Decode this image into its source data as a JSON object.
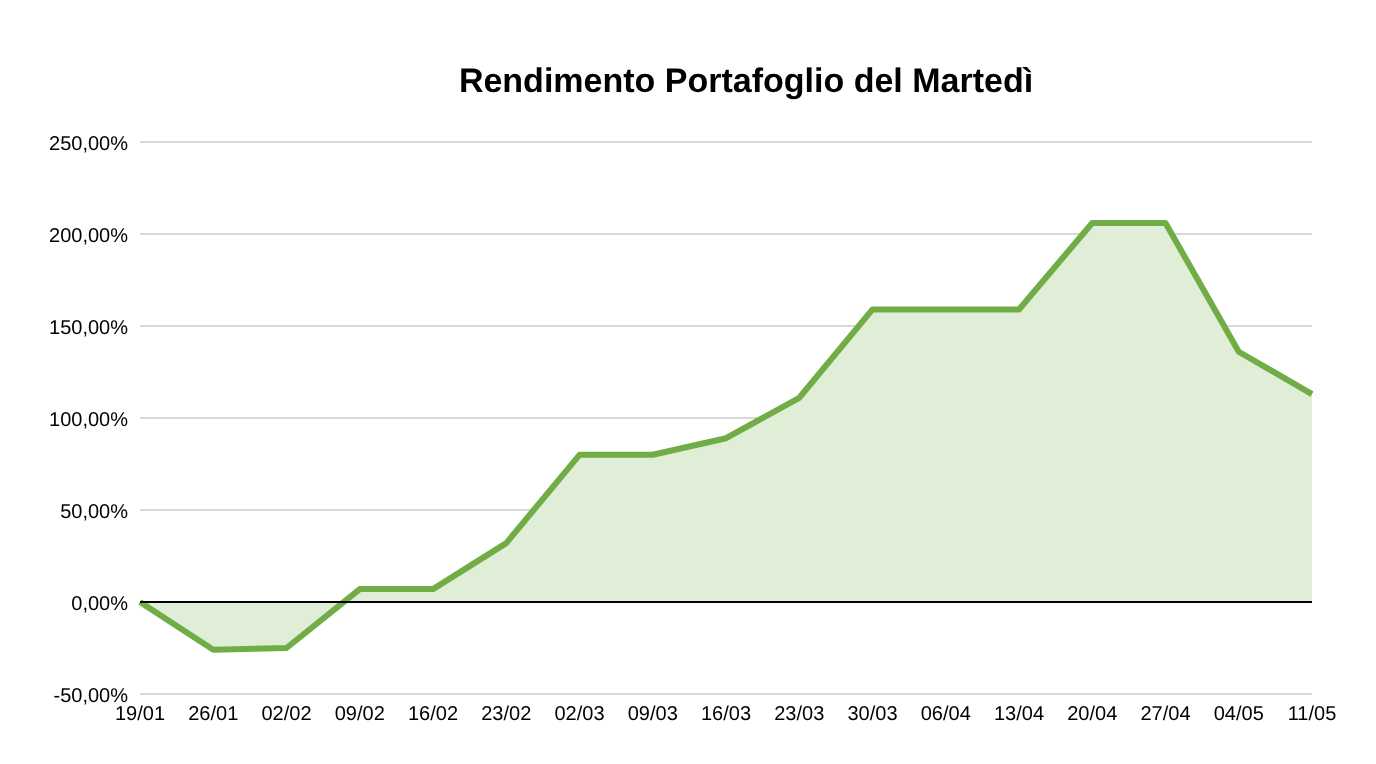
{
  "chart_data": {
    "type": "area",
    "title": "Rendimento Portafoglio del Martedì",
    "categories": [
      "19/01",
      "26/01",
      "02/02",
      "09/02",
      "16/02",
      "23/02",
      "02/03",
      "09/03",
      "16/03",
      "23/03",
      "30/03",
      "06/04",
      "13/04",
      "20/04",
      "27/04",
      "04/05",
      "11/05"
    ],
    "series": [
      {
        "color": "#70ad47",
        "values": [
          0,
          -26,
          -25,
          7,
          7,
          32,
          80,
          80,
          89,
          111,
          159,
          159,
          159,
          206,
          206,
          136,
          113
        ]
      }
    ],
    "ylim": [
      -50,
      250
    ],
    "yticks": [
      {
        "value": -50,
        "label": "-50,00%"
      },
      {
        "value": 0,
        "label": "0,00%"
      },
      {
        "value": 50,
        "label": "50,00%"
      },
      {
        "value": 100,
        "label": "100,00%"
      },
      {
        "value": 150,
        "label": "150,00%"
      },
      {
        "value": 200,
        "label": "200,00%"
      },
      {
        "value": 250,
        "label": "250,00%"
      }
    ],
    "grid": "y",
    "marker": "none",
    "line_style": "solid"
  }
}
